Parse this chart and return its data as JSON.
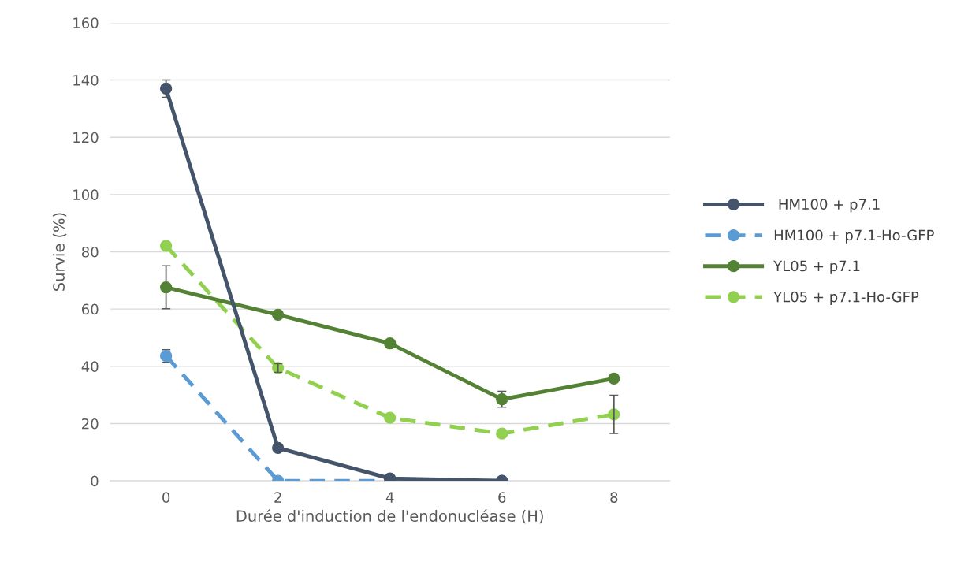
{
  "chart_data": {
    "type": "line",
    "xlabel": "Durée d'induction de l'endonucléase (H)",
    "ylabel": "Survie (%)",
    "x": [
      0,
      2,
      4,
      6,
      8
    ],
    "xlim": [
      -1,
      9
    ],
    "xticks": [
      0,
      2,
      4,
      6,
      8
    ],
    "ylim": [
      0,
      160
    ],
    "yticks": [
      0,
      20,
      40,
      60,
      80,
      100,
      120,
      140,
      160
    ],
    "grid": "y",
    "legend": "right",
    "marker": "circle",
    "series": [
      {
        "name": " HM100 + p7.1",
        "color": "#44546a",
        "line_style": "solid",
        "x": [
          0,
          2,
          4,
          6
        ],
        "values": [
          137,
          11.5,
          0.8,
          0
        ],
        "errors": [
          3,
          null,
          null,
          null
        ]
      },
      {
        "name": "HM100 + p7.1-Ho-GFP",
        "color": "#5b9bd5",
        "line_style": "dashed",
        "x": [
          0,
          2,
          4,
          6
        ],
        "values": [
          43.6,
          0,
          0,
          0
        ],
        "errors": [
          2.2,
          null,
          null,
          null
        ]
      },
      {
        "name": "YL05 + p7.1",
        "color": "#548235",
        "line_style": "solid",
        "values": [
          67.6,
          58,
          48,
          28.5,
          35.7
        ],
        "errors": [
          7.5,
          null,
          null,
          2.8,
          1
        ]
      },
      {
        "name": "YL05 + p7.1-Ho-GFP",
        "color": "#92d050",
        "line_style": "dashed",
        "values": [
          82.1,
          39.4,
          22,
          16.5,
          23.2
        ],
        "errors": [
          null,
          1.5,
          null,
          null,
          6.7
        ]
      }
    ]
  }
}
